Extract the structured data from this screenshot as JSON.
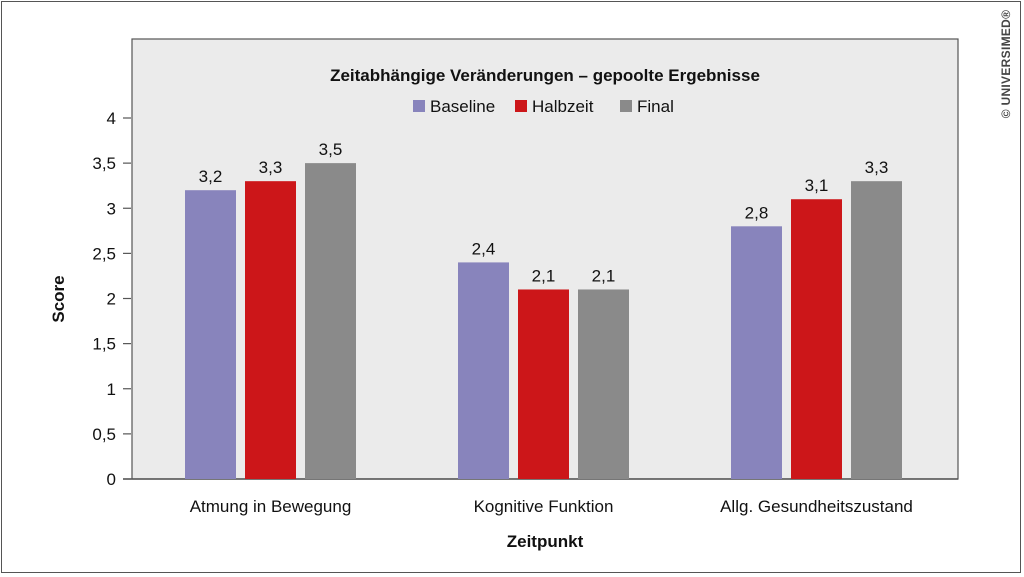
{
  "chart_data": {
    "type": "bar",
    "title": "Zeitabhängige Veränderungen – gepoolte Ergebnisse",
    "xlabel": "Zeitpunkt",
    "ylabel": "Score",
    "ylim": [
      0,
      4
    ],
    "yticks": [
      0,
      0.5,
      1,
      1.5,
      2,
      2.5,
      3,
      3.5,
      4
    ],
    "ytick_labels": [
      "0",
      "0,5",
      "1",
      "1,5",
      "2",
      "2,5",
      "3",
      "3,5",
      "4"
    ],
    "categories": [
      "Atmung in Bewegung",
      "Kognitive Funktion",
      "Allg. Gesundheitszustand"
    ],
    "legend_position": "top-center",
    "series": [
      {
        "name": "Baseline",
        "color": "#8884bc",
        "values": [
          3.2,
          2.4,
          2.8
        ],
        "labels": [
          "3,2",
          "2,4",
          "2,8"
        ]
      },
      {
        "name": "Halbzeit",
        "color": "#cc1619",
        "values": [
          3.3,
          2.1,
          3.1
        ],
        "labels": [
          "3,3",
          "2,1",
          "3,1"
        ]
      },
      {
        "name": "Final",
        "color": "#8a8a8a",
        "values": [
          3.5,
          2.1,
          3.3
        ],
        "labels": [
          "3,5",
          "2,1",
          "3,3"
        ]
      }
    ]
  },
  "copyright": "© UNIVERSIMED®"
}
